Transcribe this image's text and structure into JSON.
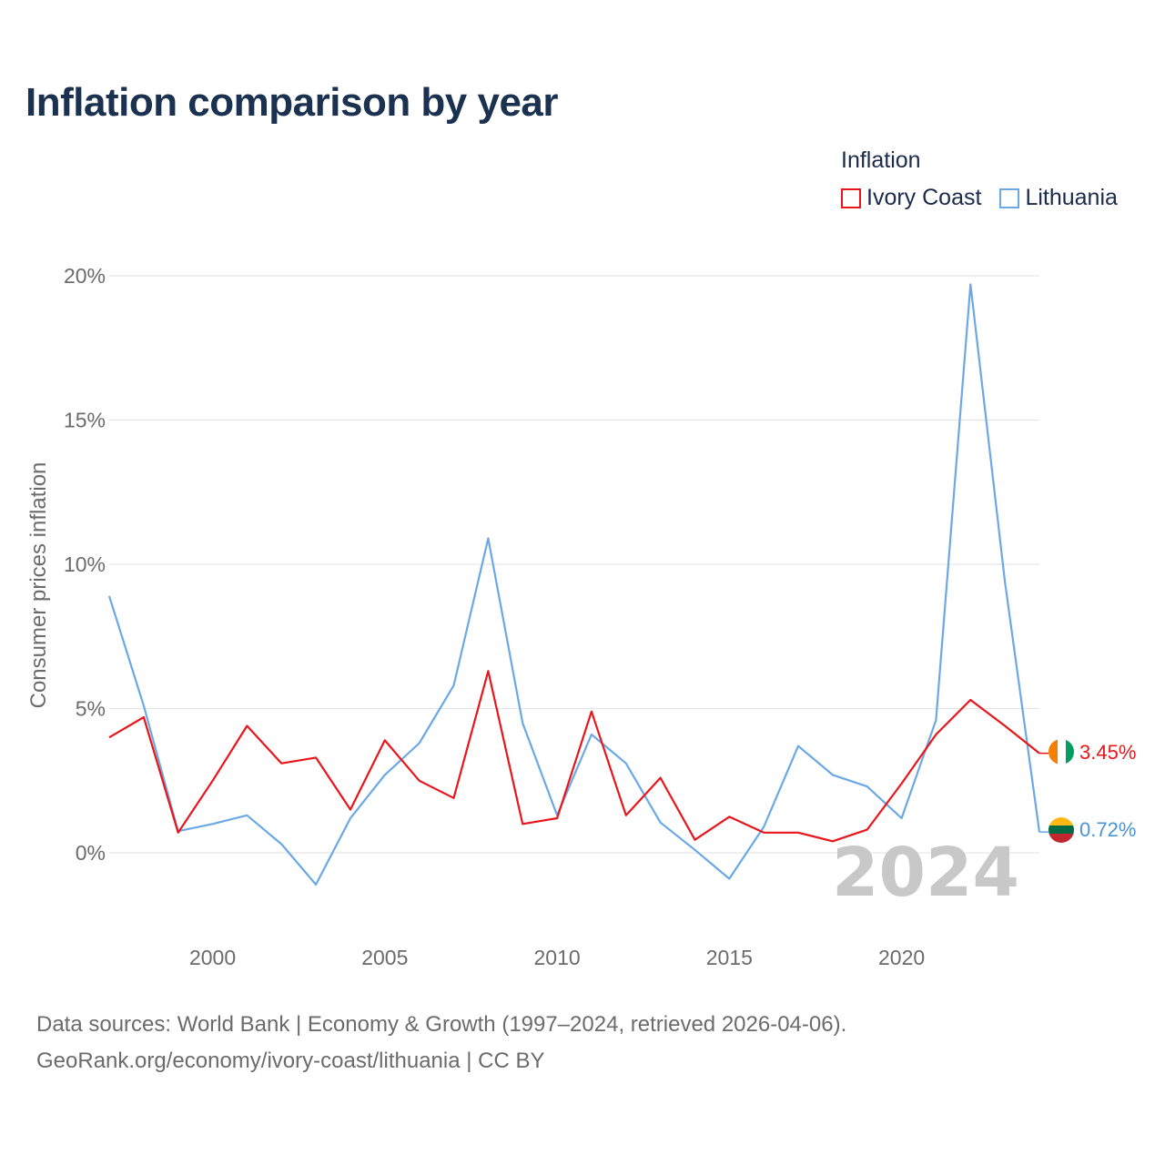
{
  "title": "Inflation comparison by year",
  "legend": {
    "title": "Inflation",
    "items": [
      {
        "label": "Ivory Coast",
        "color": "#e8161b"
      },
      {
        "label": "Lithuania",
        "color": "#6aa8e6"
      }
    ]
  },
  "watermark_year": "2024",
  "end_labels": {
    "ivory_coast": "3.45%",
    "lithuania": "0.72%"
  },
  "footer": {
    "line1": "Data sources: World Bank | Economy & Growth (1997–2024, retrieved 2026-04-06).",
    "line2": "GeoRank.org/economy/ivory-coast/lithuania | CC BY"
  },
  "chart_data": {
    "type": "line",
    "title": "Inflation comparison by year",
    "xlabel": "",
    "ylabel": "Consumer prices inflation",
    "x": [
      1997,
      1998,
      1999,
      2000,
      2001,
      2002,
      2003,
      2004,
      2005,
      2006,
      2007,
      2008,
      2009,
      2010,
      2011,
      2012,
      2013,
      2014,
      2015,
      2016,
      2017,
      2018,
      2019,
      2020,
      2021,
      2022,
      2023,
      2024
    ],
    "xlim": [
      1997,
      2024
    ],
    "ylim": [
      -2.5,
      20
    ],
    "yticks": [
      0,
      5,
      10,
      15,
      20
    ],
    "ytick_labels": [
      "0%",
      "5%",
      "10%",
      "15%",
      "20%"
    ],
    "xticks": [
      2000,
      2005,
      2010,
      2015,
      2020
    ],
    "xtick_labels": [
      "2000",
      "2005",
      "2010",
      "2015",
      "2020"
    ],
    "grid": true,
    "legend_position": "top-right",
    "series": [
      {
        "name": "Ivory Coast",
        "color": "#e8161b",
        "values": [
          4.0,
          4.7,
          0.7,
          2.5,
          4.4,
          3.1,
          3.3,
          1.5,
          3.9,
          2.5,
          1.9,
          6.3,
          1.0,
          1.2,
          4.9,
          1.3,
          2.6,
          0.45,
          1.25,
          0.7,
          0.7,
          0.4,
          0.8,
          2.4,
          4.1,
          5.3,
          4.4,
          3.45
        ]
      },
      {
        "name": "Lithuania",
        "color": "#6aa8e6",
        "values": [
          8.9,
          5.1,
          0.75,
          1.0,
          1.3,
          0.3,
          -1.1,
          1.2,
          2.7,
          3.8,
          5.8,
          10.9,
          4.5,
          1.3,
          4.1,
          3.1,
          1.05,
          0.1,
          -0.9,
          0.9,
          3.7,
          2.7,
          2.3,
          1.2,
          4.6,
          19.7,
          9.4,
          0.72
        ]
      }
    ]
  }
}
